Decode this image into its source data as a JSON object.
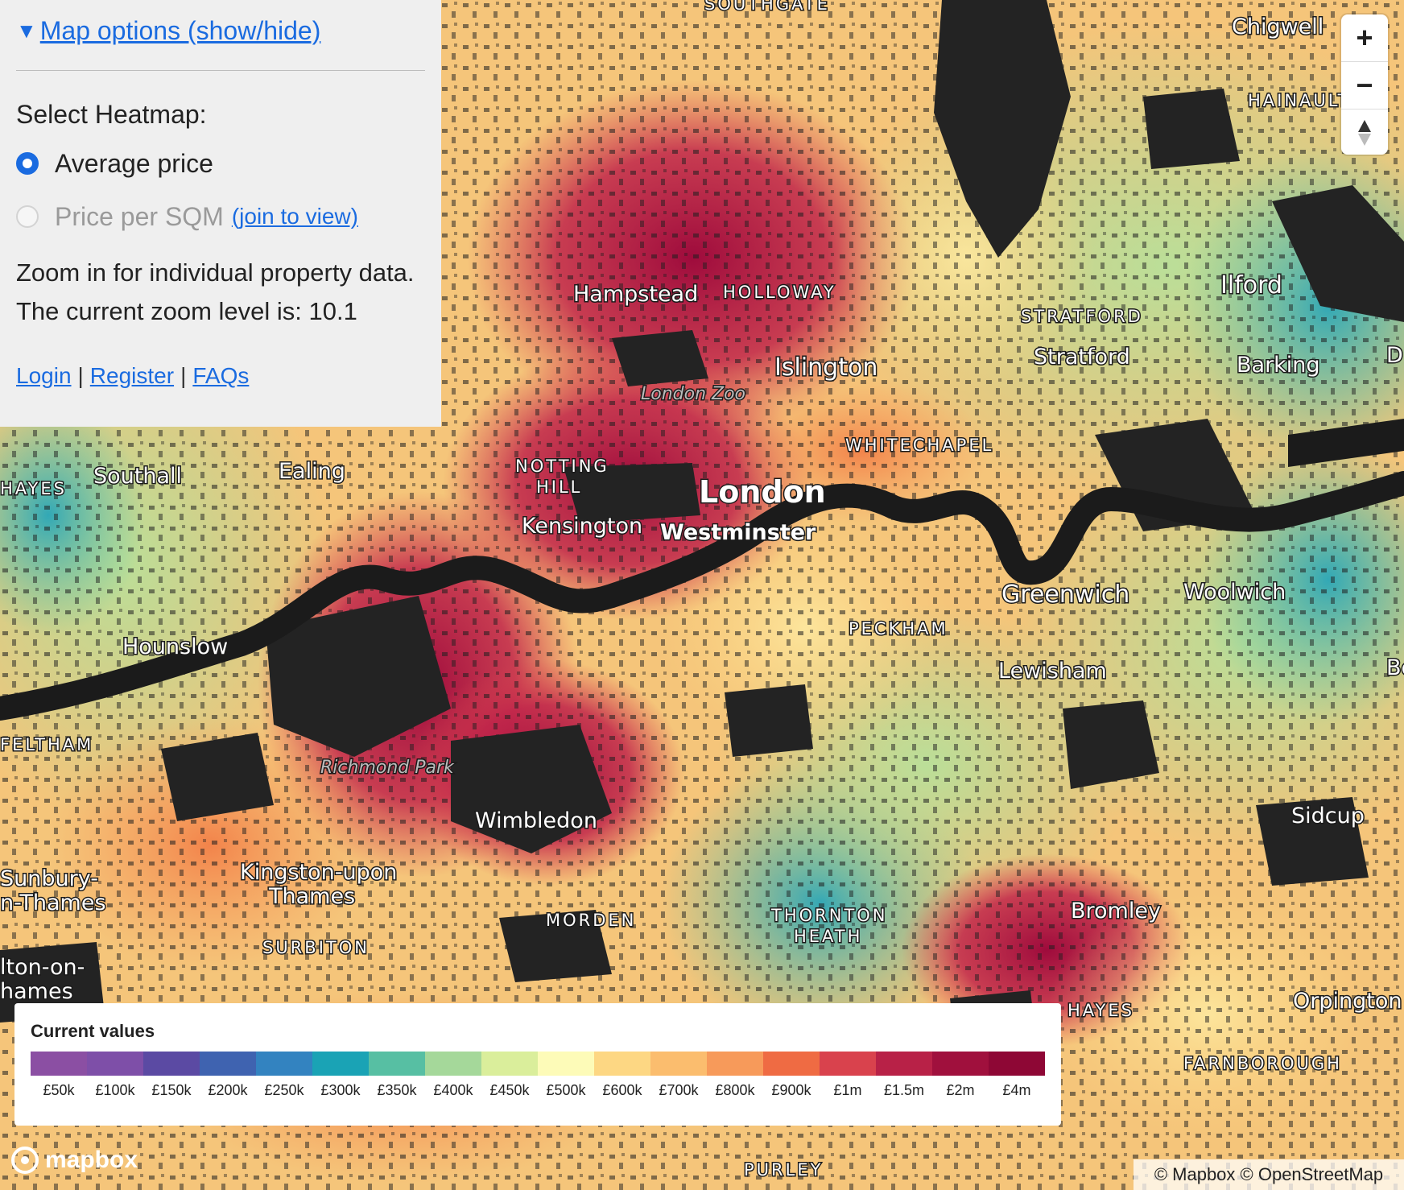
{
  "panel": {
    "toggle_label": "Map options (show/hide)",
    "select_title": "Select Heatmap:",
    "option_avg": "Average price",
    "option_sqm": "Price per SQM",
    "join_link": "(join to view)",
    "zoom_info": "Zoom in for individual property data.",
    "zoom_level_text": "The current zoom level is: 10.1",
    "login": "Login",
    "register": "Register",
    "faqs": "FAQs",
    "sep": "|"
  },
  "zoom_controls": {
    "zoom_in": "+",
    "zoom_out": "−"
  },
  "legend": {
    "title": "Current values",
    "items": [
      {
        "label": "£50k",
        "color": "#8b4fa3"
      },
      {
        "label": "£100k",
        "color": "#7e4fa8"
      },
      {
        "label": "£150k",
        "color": "#5b4aa3"
      },
      {
        "label": "£200k",
        "color": "#3f63b0"
      },
      {
        "label": "£250k",
        "color": "#3383c0"
      },
      {
        "label": "£300k",
        "color": "#1aa3b5"
      },
      {
        "label": "£350k",
        "color": "#57bfa3"
      },
      {
        "label": "£400k",
        "color": "#a5d89a"
      },
      {
        "label": "£450k",
        "color": "#daee9b"
      },
      {
        "label": "£500k",
        "color": "#fdfbb8"
      },
      {
        "label": "£600k",
        "color": "#fdd783"
      },
      {
        "label": "£700k",
        "color": "#fbbd6e"
      },
      {
        "label": "£800k",
        "color": "#f79a5a"
      },
      {
        "label": "£900k",
        "color": "#ef6b43"
      },
      {
        "label": "£1m",
        "color": "#d9424d"
      },
      {
        "label": "£1.5m",
        "color": "#b82147"
      },
      {
        "label": "£2m",
        "color": "#a0103d"
      },
      {
        "label": "£4m",
        "color": "#8e0735"
      }
    ]
  },
  "map_labels": {
    "southgate": "SOUTHGATE",
    "chigwell": "Chigwell",
    "hainault": "HAINAULT",
    "hampstead": "Hampstead",
    "holloway": "HOLLOWAY",
    "ilford": "Ilford",
    "stratford_caps": "STRATFORD",
    "stratford": "Stratford",
    "barking": "Barking",
    "islington": "Islington",
    "london_zoo": "London Zoo",
    "whitechapel": "WHITECHAPEL",
    "southall": "Southall",
    "ealing": "Ealing",
    "hayes": "HAYES",
    "notting": "NOTTING",
    "hill": "HILL",
    "london": "London",
    "kensington": "Kensington",
    "westminster": "Westminster",
    "greenwich": "Greenwich",
    "woolwich": "Woolwich",
    "hounslow": "Hounslow",
    "peckham": "PECKHAM",
    "lewisham": "Lewisham",
    "feltham": "FELTHAM",
    "richmond_park": "Richmond Park",
    "wimbledon": "Wimbledon",
    "sidcup": "Sidcup",
    "kingston1": "Kingston-upon",
    "kingston2": "Thames",
    "sunbury1": "Sunbury-",
    "sunbury2": "n-Thames",
    "morden": "MORDEN",
    "thornton": "THORNTON",
    "heath": "HEATH",
    "bromley": "Bromley",
    "surbiton": "SURBITON",
    "hampton1": "lton-on-",
    "hampton2": "hames",
    "hayes_south": "HAYES",
    "orpington": "Orpington",
    "farnborough": "FARNBOROUGH",
    "purley": "PURLEY",
    "edge_d": "D",
    "edge_b": "Be"
  },
  "attribution": {
    "logo": "mapbox",
    "text": "© Mapbox © OpenStreetMap"
  }
}
